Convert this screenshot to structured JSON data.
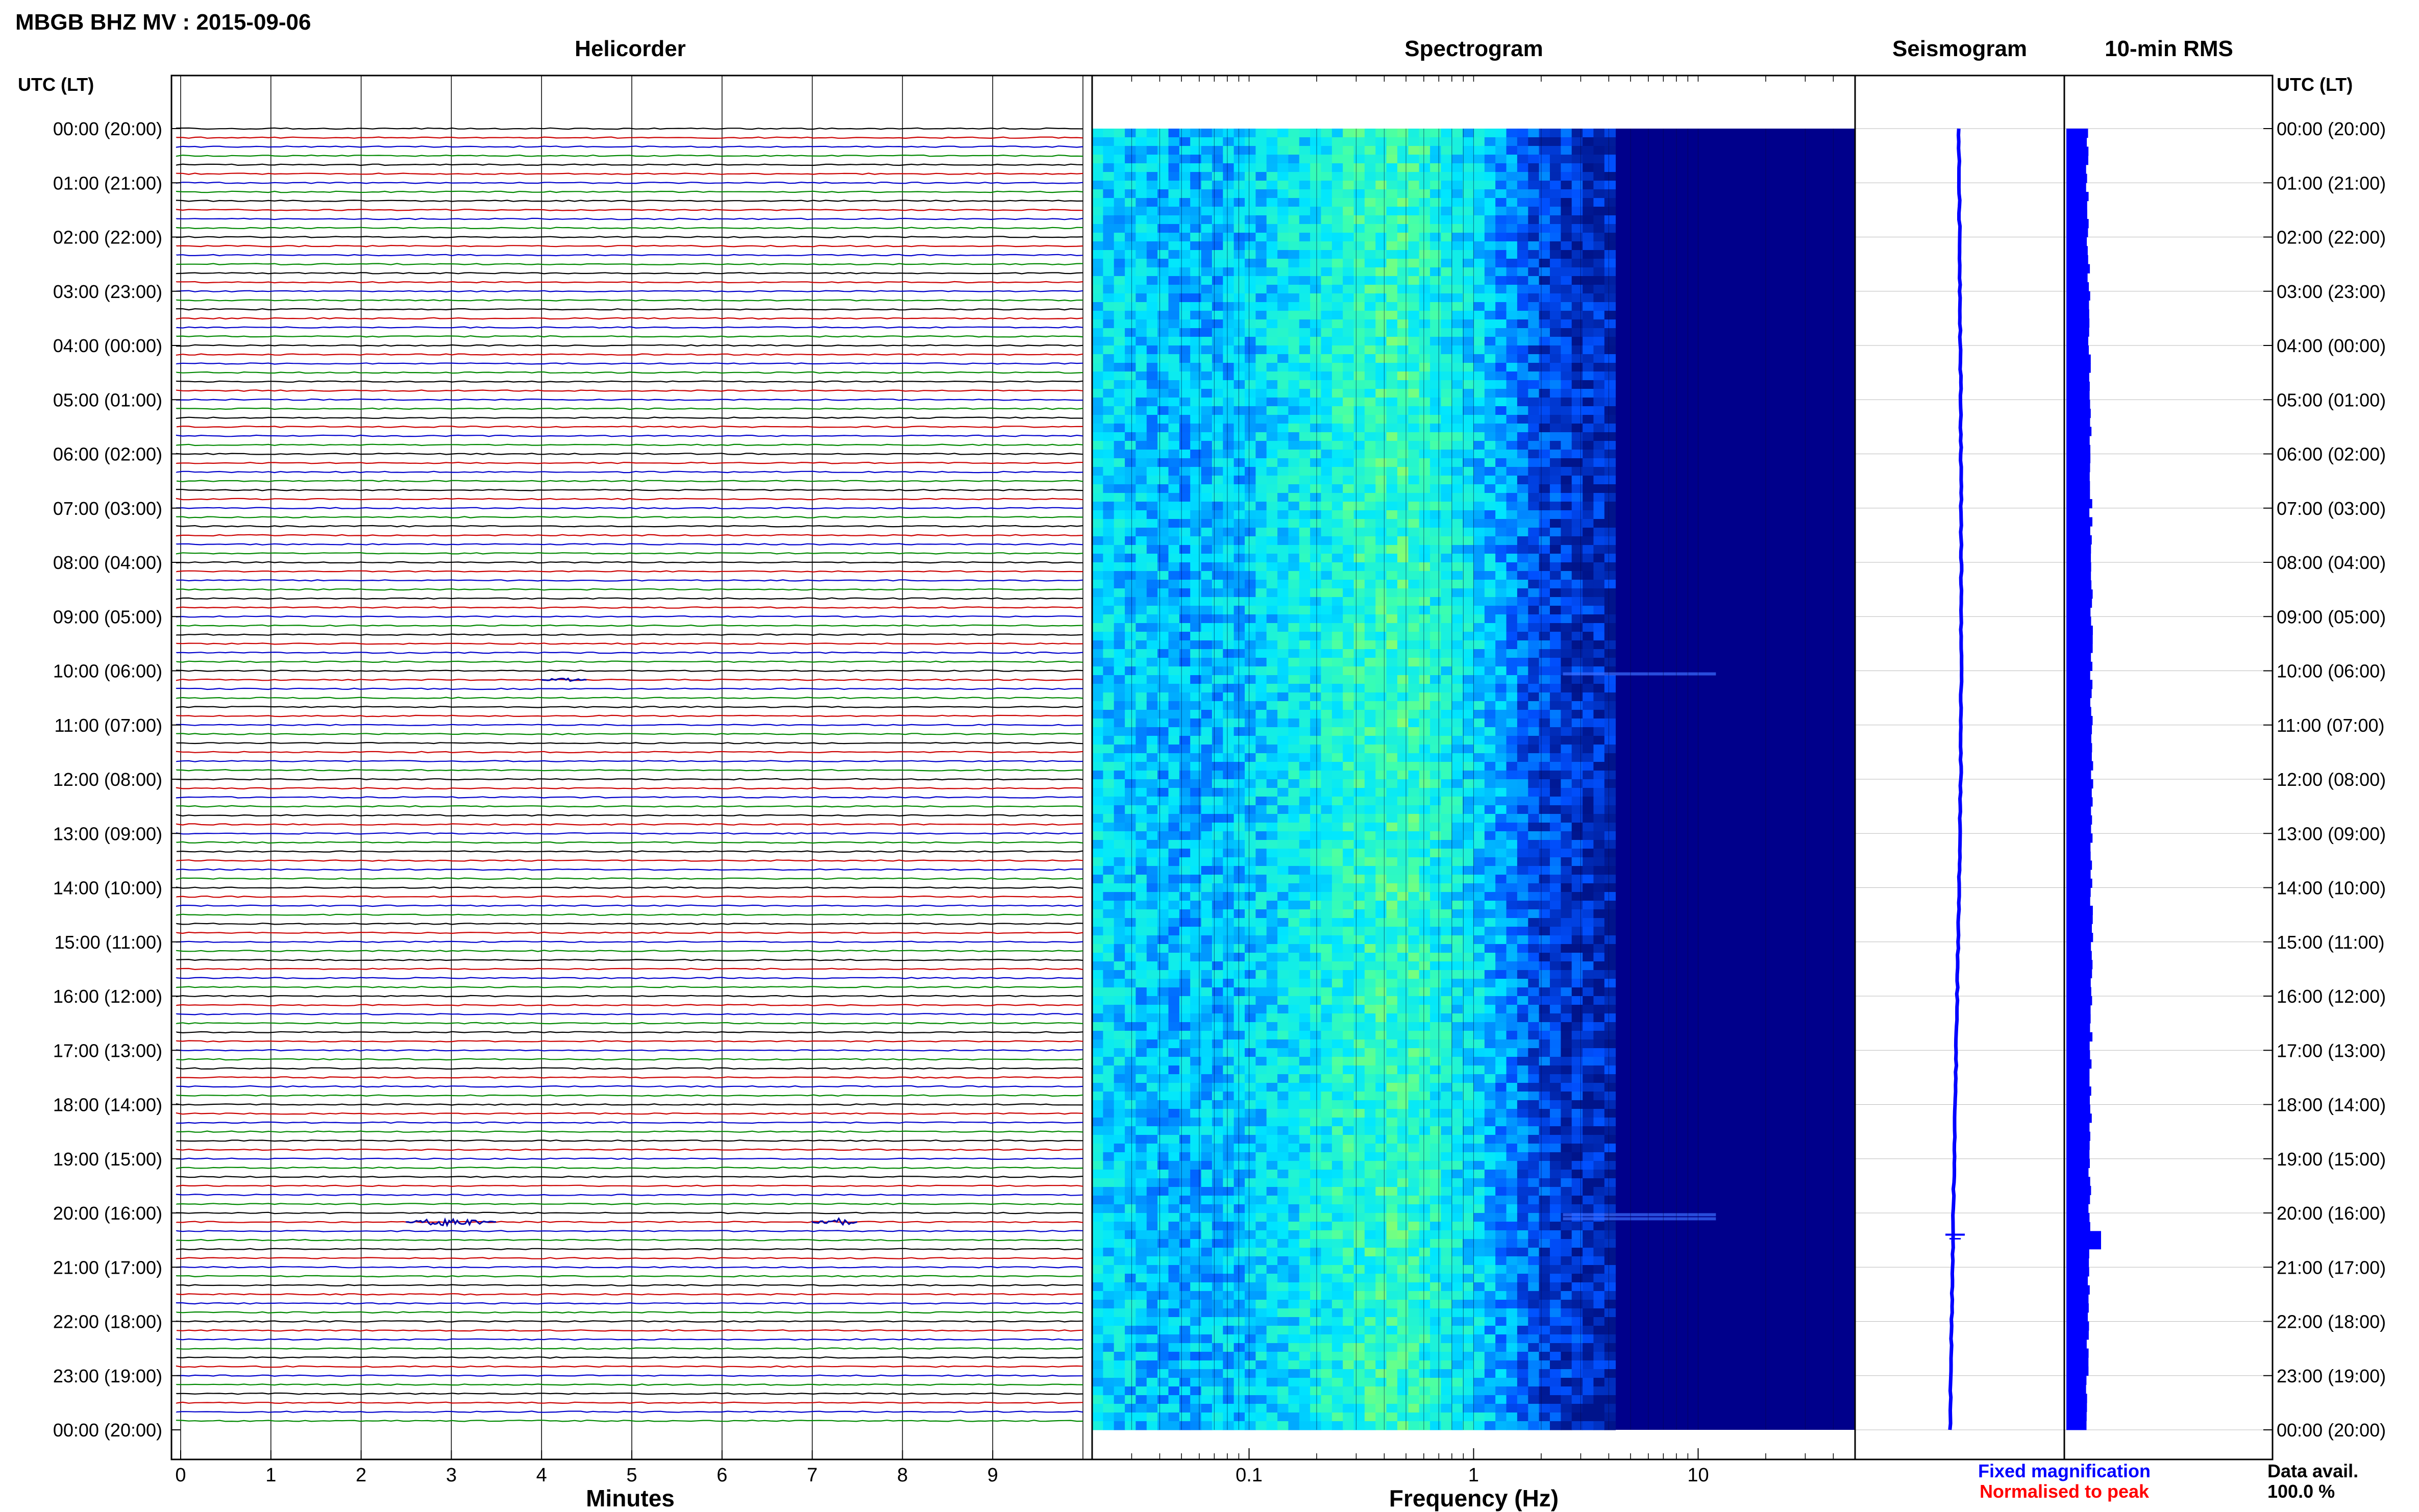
{
  "header": {
    "title": "MBGB BHZ MV : 2015-09-06"
  },
  "panels": {
    "helicorder": "Helicorder",
    "spectrogram": "Spectrogram",
    "seismogram": "Seismogram",
    "rms": "10-min RMS",
    "utc_left": "UTC (LT)",
    "utc_right": "UTC (LT)"
  },
  "axes": {
    "minutes_label": "Minutes",
    "freq_label": "Frequency (Hz)",
    "minute_ticks": [
      "0",
      "1",
      "2",
      "3",
      "4",
      "5",
      "6",
      "7",
      "8",
      "9"
    ],
    "freq_ticks": [
      {
        "label": "0.1",
        "value": 0.1
      },
      {
        "label": "1",
        "value": 1
      },
      {
        "label": "10",
        "value": 10
      }
    ],
    "freq_range": [
      0.02,
      50
    ],
    "time_labels": [
      "00:00 (20:00)",
      "01:00 (21:00)",
      "02:00 (22:00)",
      "03:00 (23:00)",
      "04:00 (00:00)",
      "05:00 (01:00)",
      "06:00 (02:00)",
      "07:00 (03:00)",
      "08:00 (04:00)",
      "09:00 (05:00)",
      "10:00 (06:00)",
      "11:00 (07:00)",
      "12:00 (08:00)",
      "13:00 (09:00)",
      "14:00 (10:00)",
      "15:00 (11:00)",
      "16:00 (12:00)",
      "17:00 (13:00)",
      "18:00 (14:00)",
      "19:00 (15:00)",
      "20:00 (16:00)",
      "21:00 (17:00)",
      "22:00 (18:00)",
      "23:00 (19:00)",
      "00:00 (20:00)"
    ]
  },
  "legend": {
    "fixed": "Fixed magnification",
    "normalised": "Normalised to peak",
    "fixed_color": "#0000ff",
    "normalised_color": "#ff0000"
  },
  "availability": {
    "label": "Data avail.",
    "value": "100.0 %"
  },
  "colors": {
    "trace_cycle": [
      "#000000",
      "#cc0000",
      "#0000cc",
      "#008800"
    ],
    "spectrogram_dark": "#00008b",
    "spectrogram_cyan": "#00c8e6",
    "spectrogram_green": "#7cff9a",
    "seismogram_trace": "#0000ff",
    "rms_bar": "#0000ff"
  },
  "chart_data": [
    {
      "type": "line",
      "name": "helicorder",
      "title": "Helicorder",
      "xlabel": "Minutes",
      "xlim": [
        0,
        10
      ],
      "rows_per_hour": 6,
      "hours": 24,
      "events": [
        {
          "hour_row": 20,
          "minute_start": 2.5,
          "minute_end": 3.5,
          "amplitude": "large"
        },
        {
          "hour_row": 20,
          "minute_start": 7.0,
          "minute_end": 7.5,
          "amplitude": "large"
        },
        {
          "hour_row": 10,
          "minute_start": 4.0,
          "minute_end": 4.5,
          "amplitude": "small"
        }
      ]
    },
    {
      "type": "heatmap",
      "name": "spectrogram",
      "title": "Spectrogram",
      "xlabel": "Frequency (Hz)",
      "x_scale": "log",
      "xlim": [
        0.02,
        50
      ],
      "energy_profile_by_freq": [
        {
          "freq": 0.02,
          "level": 0.55
        },
        {
          "freq": 0.05,
          "level": 0.45
        },
        {
          "freq": 0.1,
          "level": 0.5
        },
        {
          "freq": 0.3,
          "level": 0.7
        },
        {
          "freq": 0.5,
          "level": 0.75
        },
        {
          "freq": 1,
          "level": 0.55
        },
        {
          "freq": 2,
          "level": 0.2
        },
        {
          "freq": 5,
          "level": 0.05
        },
        {
          "freq": 50,
          "level": 0.02
        }
      ]
    },
    {
      "type": "line",
      "name": "seismogram",
      "title": "Seismogram",
      "event_hour": 20.4
    },
    {
      "type": "bar",
      "name": "rms",
      "title": "10-min RMS",
      "event_hour": 20.4
    }
  ]
}
